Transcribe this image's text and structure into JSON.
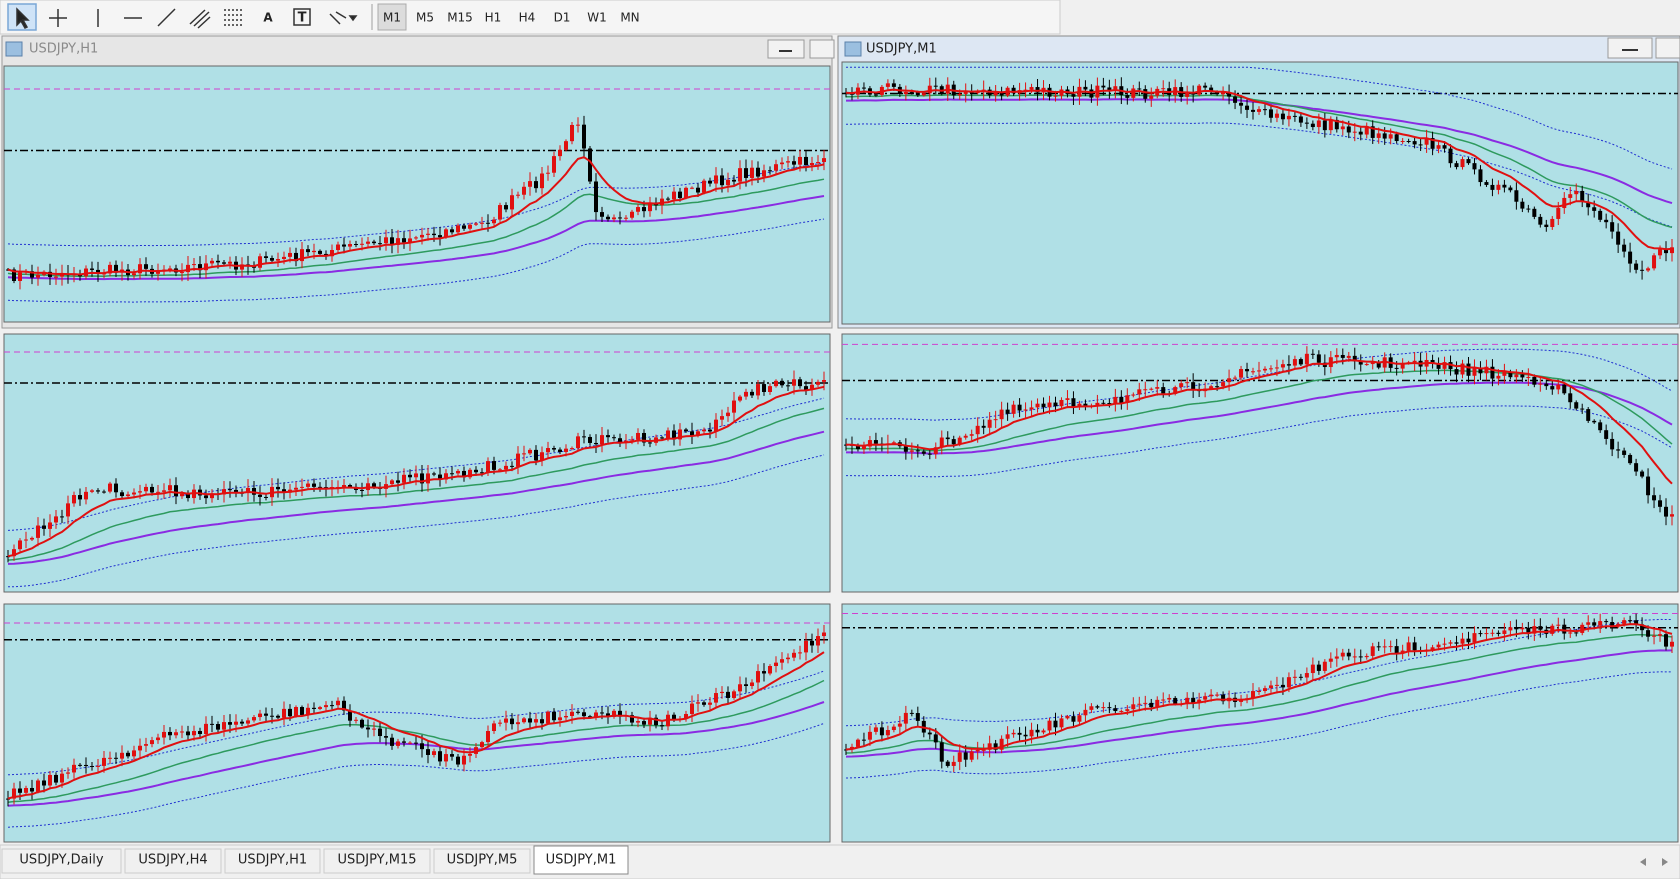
{
  "toolbar": {
    "text_tool": "A",
    "label_tool": "T",
    "timeframes": [
      "M1",
      "M5",
      "M15",
      "H1",
      "H4",
      "D1",
      "W1",
      "MN"
    ]
  },
  "windows": [
    {
      "title": "USDJPY,H1"
    },
    {
      "title": "USDJPY,M1"
    }
  ],
  "tabs": [
    "USDJPY,Daily",
    "USDJPY,H4",
    "USDJPY,H1",
    "USDJPY,M15",
    "USDJPY,M5",
    "USDJPY,M1"
  ]
}
